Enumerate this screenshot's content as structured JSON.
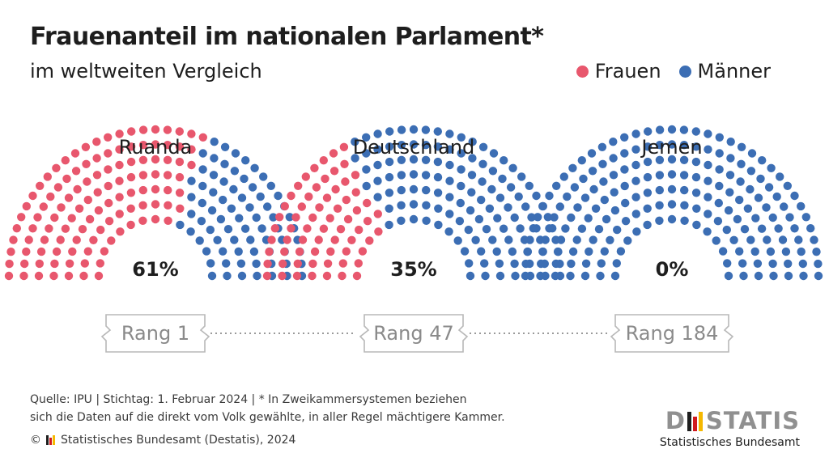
{
  "header": {
    "title": "Frauenanteil im nationalen Parlament*",
    "subtitle": "im weltweiten Vergleich"
  },
  "legend": [
    {
      "label": "Frauen",
      "color": "#e8576d"
    },
    {
      "label": "Männer",
      "color": "#3c6eb4"
    }
  ],
  "chart_data": {
    "type": "parliament-hemicycle",
    "title": "Frauenanteil im nationalen Parlament*",
    "subtitle": "im weltweiten Vergleich",
    "series": [
      {
        "name": "Frauen",
        "color": "#e8576d"
      },
      {
        "name": "Männer",
        "color": "#3c6eb4"
      }
    ],
    "countries": [
      {
        "name": "Ruanda",
        "women_share": 61,
        "value_label": "61%",
        "rank_label": "Rang 1"
      },
      {
        "name": "Deutschland",
        "women_share": 35,
        "value_label": "35%",
        "rank_label": "Rang 47"
      },
      {
        "name": "Jemen",
        "women_share": 0,
        "value_label": "0%",
        "rank_label": "Rang 184"
      }
    ]
  },
  "footer": {
    "source_line1": "Quelle: IPU | Stichtag: 1. Februar 2024 | * In Zweikammersystemen beziehen",
    "source_line2": "sich die Daten auf die direkt vom Volk gewählte, in aller Regel mächtigere Kammer.",
    "copyright_symbol": "©",
    "copyright_text": "Statistisches Bundesamt (Destatis), 2024",
    "logo_left": "D",
    "logo_right": "STATIS",
    "logo_subtitle": "Statistisches Bundesamt",
    "logo_colors": [
      "#1e1e1e",
      "#d0191e",
      "#f5b800"
    ]
  }
}
